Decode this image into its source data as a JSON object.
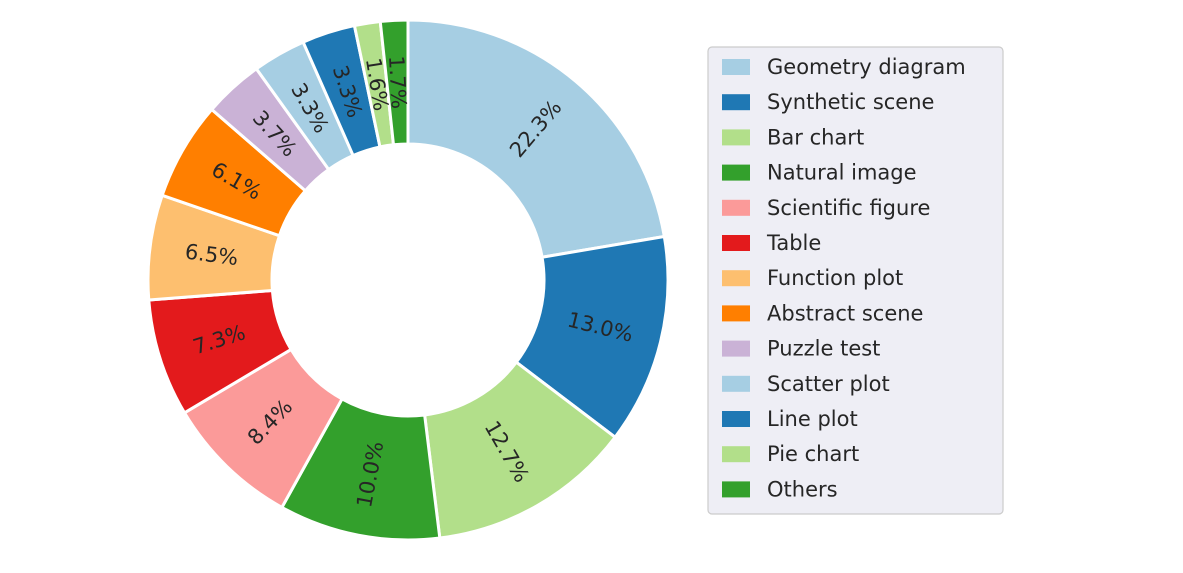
{
  "chart_data": {
    "type": "pie",
    "donut": true,
    "title": "",
    "legend_placement": "right",
    "slices": [
      {
        "name": "Geometry diagram",
        "value": 22.3,
        "label": "22.3%",
        "color": "#a6cee3"
      },
      {
        "name": "Synthetic scene",
        "value": 13.0,
        "label": "13.0%",
        "color": "#1f78b4"
      },
      {
        "name": "Bar chart",
        "value": 12.7,
        "label": "12.7%",
        "color": "#b2df8a"
      },
      {
        "name": "Natural image",
        "value": 10.0,
        "label": "10.0%",
        "color": "#33a02c"
      },
      {
        "name": "Scientific figure",
        "value": 8.4,
        "label": "8.4%",
        "color": "#fb9a99"
      },
      {
        "name": "Table",
        "value": 7.3,
        "label": "7.3%",
        "color": "#e31a1c"
      },
      {
        "name": "Function plot",
        "value": 6.5,
        "label": "6.5%",
        "color": "#fdbf6f"
      },
      {
        "name": "Abstract scene",
        "value": 6.1,
        "label": "6.1%",
        "color": "#ff7f00"
      },
      {
        "name": "Puzzle test",
        "value": 3.7,
        "label": "3.7%",
        "color": "#cab2d6"
      },
      {
        "name": "Scatter plot",
        "value": 3.3,
        "label": "3.3%",
        "color": "#a6cee3"
      },
      {
        "name": "Line plot",
        "value": 3.3,
        "label": "3.3%",
        "color": "#1f78b4"
      },
      {
        "name": "Pie chart",
        "value": 1.6,
        "label": "1.6%",
        "color": "#b2df8a"
      },
      {
        "name": "Others",
        "value": 1.7,
        "label": "1.7%",
        "color": "#33a02c"
      }
    ]
  }
}
